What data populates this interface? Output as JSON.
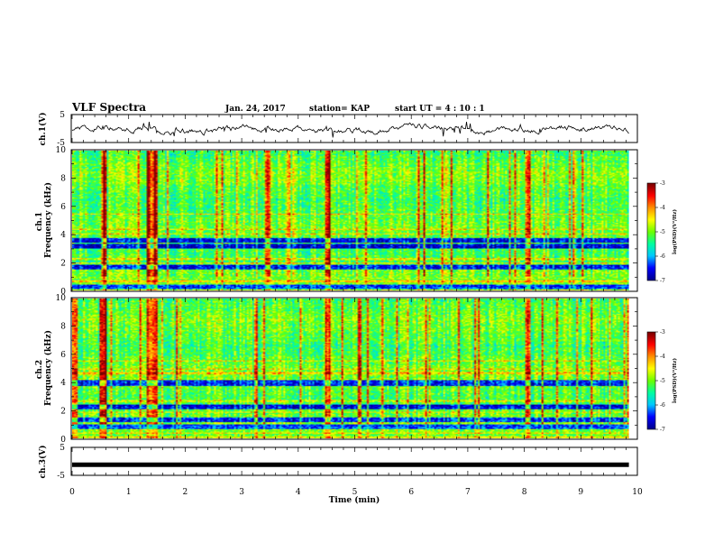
{
  "header": {
    "title": "VLF Spectra",
    "date": "Jan. 24, 2017",
    "station": "station= KAP",
    "start": "start  UT =   4 : 10 : 1"
  },
  "chart_data": [
    {
      "type": "line",
      "id": "ch1",
      "ylabel": "ch.1(V)",
      "ylim": [
        -5,
        5
      ],
      "yticks": [
        -5,
        5
      ],
      "xlim": [
        0,
        10
      ],
      "description_values": "raw waveform fluctuating roughly between -3 and +2 V",
      "color": "#000000"
    },
    {
      "type": "heatmap",
      "id": "ch1-spectrogram",
      "ylabel": "ch.1\nFrequency  (kHz)",
      "ylabel_line1": "ch.1",
      "ylabel_line2": "Frequency  (kHz)",
      "ylim": [
        0,
        10
      ],
      "yticks": [
        0,
        2,
        4,
        6,
        8,
        10
      ],
      "xlim": [
        0,
        10
      ],
      "colorbar": {
        "label": "log(PSD)(V²/Hz)",
        "range": [
          -7,
          -3
        ],
        "ticks": [
          -3,
          -4,
          -5,
          -6,
          -7
        ]
      },
      "dark_bands_khz": [
        0.3,
        1.7,
        3.2,
        3.6
      ],
      "bright_lines_khz": [
        0.7,
        2.0,
        2.3,
        4.1,
        4.4,
        5.5
      ],
      "bright_columns_min": [
        0.55,
        1.35,
        1.45,
        3.45,
        4.5,
        8.05
      ]
    },
    {
      "type": "heatmap",
      "id": "ch2-spectrogram",
      "ylabel_line1": "ch.2",
      "ylabel_line2": "Frequency  (kHz)",
      "ylim": [
        0,
        10
      ],
      "yticks": [
        0,
        2,
        4,
        6,
        8,
        10
      ],
      "xlim": [
        0,
        10
      ],
      "colorbar": {
        "label": "log(PSD)(V²/Hz)",
        "range": [
          -7,
          -3
        ],
        "ticks": [
          -3,
          -4,
          -5,
          -6,
          -7
        ]
      },
      "dark_bands_khz": [
        0.9,
        1.4,
        2.3,
        4.0
      ],
      "bright_lines_khz": [
        0.4,
        1.9,
        2.7,
        4.7,
        5.0,
        5.6
      ],
      "bright_columns_min": [
        0.55,
        1.35,
        1.45,
        4.5,
        8.05
      ]
    },
    {
      "type": "line",
      "id": "ch3",
      "ylabel": "ch.3(V)",
      "ylim": [
        -5,
        5
      ],
      "yticks": [
        -5,
        5
      ],
      "xlim": [
        0,
        9.8
      ],
      "values_constant": -1.2,
      "color": "#000000"
    }
  ],
  "xaxis": {
    "label": "Time  (min)",
    "ticks": [
      0,
      1,
      2,
      3,
      4,
      5,
      6,
      7,
      8,
      9,
      10
    ],
    "data_end_min": 9.85
  },
  "colors": {
    "colormap": [
      "#00008c",
      "#0000ff",
      "#00c8ff",
      "#00ffa0",
      "#6cff00",
      "#ffff00",
      "#ff9000",
      "#ff0000",
      "#7a0000"
    ]
  }
}
